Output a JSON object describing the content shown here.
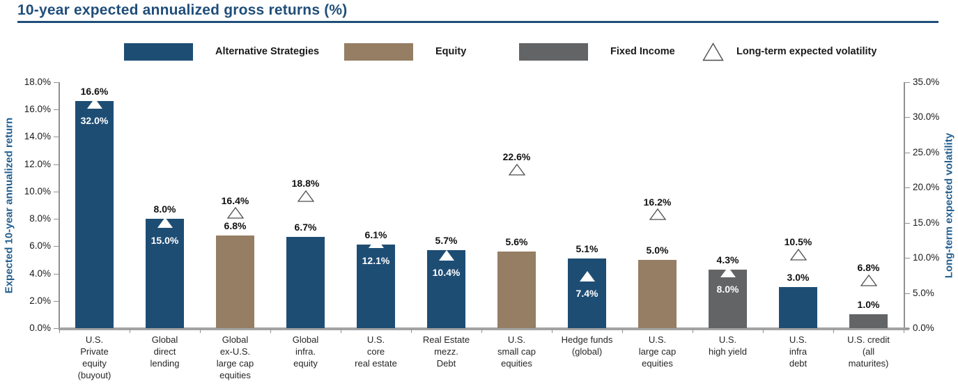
{
  "title": "10-year expected annualized gross returns (%)",
  "colors": {
    "accent_blue": "#1F4E79",
    "axis_title_blue": "#235F8F",
    "bar_blue": "#1E4D74",
    "bar_tan": "#957E63",
    "bar_gray": "#636466",
    "axis_line_gray": "#909090",
    "triangle_outline": "#4d4d4d"
  },
  "legend": [
    {
      "label": "Alternative Strategies",
      "swatch": "bar_blue",
      "marker": "rect"
    },
    {
      "label": "Equity",
      "swatch": "bar_tan",
      "marker": "rect"
    },
    {
      "label": "Fixed Income",
      "swatch": "bar_gray",
      "marker": "rect"
    },
    {
      "label": "Long-term expected volatility",
      "marker": "triangle"
    }
  ],
  "chart_data": {
    "type": "bar",
    "title": "10-year expected annualized gross returns (%)",
    "grid": false,
    "legend_position": "top",
    "left_axis": {
      "label": "Expected 10-year annualized return",
      "min": 0,
      "max": 18,
      "step": 2,
      "tick_suffix": "%"
    },
    "right_axis": {
      "label": "Long-term expected volatility",
      "min": 0,
      "max": 35,
      "step": 5,
      "tick_suffix": "%"
    },
    "series": [
      {
        "name": "Expected 10-year annualized return (bars)",
        "unit": "%"
      },
      {
        "name": "Long-term expected volatility (triangles)",
        "unit": "%"
      }
    ],
    "categories": [
      {
        "label_lines": [
          "U.S.",
          "Private",
          "equity",
          "(buyout)"
        ],
        "group": "Alternative Strategies",
        "color_key": "bar_blue",
        "return_pct": 16.6,
        "volatility_pct": 32.0,
        "volatility_label_style": "inside"
      },
      {
        "label_lines": [
          "Global",
          "direct",
          "lending"
        ],
        "group": "Alternative Strategies",
        "color_key": "bar_blue",
        "return_pct": 8.0,
        "volatility_pct": 15.0,
        "volatility_label_style": "inside"
      },
      {
        "label_lines": [
          "Global",
          "ex-U.S.",
          "large cap",
          "equities"
        ],
        "group": "Equity",
        "color_key": "bar_tan",
        "return_pct": 6.8,
        "volatility_pct": 16.4,
        "volatility_label_style": "above"
      },
      {
        "label_lines": [
          "Global",
          "infra.",
          "equity"
        ],
        "group": "Alternative Strategies",
        "color_key": "bar_blue",
        "return_pct": 6.7,
        "volatility_pct": 18.8,
        "volatility_label_style": "above"
      },
      {
        "label_lines": [
          "U.S.",
          "core",
          "real estate"
        ],
        "group": "Alternative Strategies",
        "color_key": "bar_blue",
        "return_pct": 6.1,
        "volatility_pct": 12.1,
        "volatility_label_style": "inside"
      },
      {
        "label_lines": [
          "Real Estate",
          "mezz.",
          "Debt"
        ],
        "group": "Alternative Strategies",
        "color_key": "bar_blue",
        "return_pct": 5.7,
        "volatility_pct": 10.4,
        "volatility_label_style": "inside"
      },
      {
        "label_lines": [
          "U.S.",
          "small cap",
          "equities"
        ],
        "group": "Equity",
        "color_key": "bar_tan",
        "return_pct": 5.6,
        "volatility_pct": 22.6,
        "volatility_label_style": "above"
      },
      {
        "label_lines": [
          "Hedge funds",
          "(global)"
        ],
        "group": "Alternative Strategies",
        "color_key": "bar_blue",
        "return_pct": 5.1,
        "volatility_pct": 7.4,
        "volatility_label_style": "inside"
      },
      {
        "label_lines": [
          "U.S.",
          "large cap",
          "equities"
        ],
        "group": "Equity",
        "color_key": "bar_tan",
        "return_pct": 5.0,
        "volatility_pct": 16.2,
        "volatility_label_style": "above"
      },
      {
        "label_lines": [
          "U.S.",
          "high yield"
        ],
        "group": "Fixed Income",
        "color_key": "bar_gray",
        "return_pct": 4.3,
        "volatility_pct": 8.0,
        "volatility_label_style": "inside"
      },
      {
        "label_lines": [
          "U.S.",
          "infra",
          "debt"
        ],
        "group": "Alternative Strategies",
        "color_key": "bar_blue",
        "return_pct": 3.0,
        "volatility_pct": 10.5,
        "volatility_label_style": "above"
      },
      {
        "label_lines": [
          "U.S. credit",
          "(all",
          "maturites)"
        ],
        "group": "Fixed Income",
        "color_key": "bar_gray",
        "return_pct": 1.0,
        "volatility_pct": 6.8,
        "volatility_label_style": "above"
      }
    ]
  }
}
